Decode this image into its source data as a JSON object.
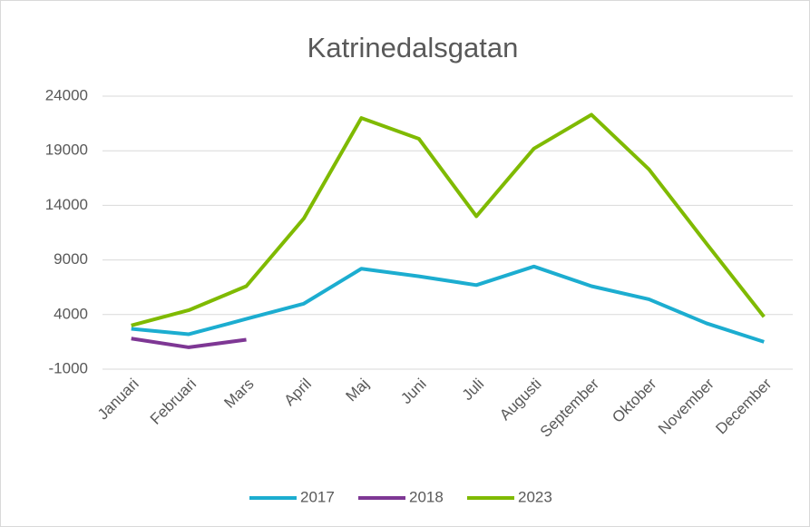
{
  "chart_data": {
    "type": "line",
    "title": "Katrinedalsgatan",
    "categories": [
      "Januari",
      "Februari",
      "Mars",
      "April",
      "Maj",
      "Juni",
      "Juli",
      "Augusti",
      "September",
      "Oktober",
      "November",
      "December"
    ],
    "series": [
      {
        "name": "2017",
        "color": "#1cadd0",
        "values": [
          2700,
          2200,
          3600,
          5000,
          8200,
          7500,
          6700,
          8400,
          6600,
          5400,
          3200,
          1500
        ]
      },
      {
        "name": "2018",
        "color": "#7e3794",
        "values": [
          1800,
          1000,
          1700,
          null,
          null,
          null,
          null,
          null,
          null,
          null,
          null,
          null
        ]
      },
      {
        "name": "2023",
        "color": "#7fba00",
        "values": [
          3000,
          4400,
          6600,
          12800,
          22000,
          20100,
          13000,
          19200,
          22300,
          17300,
          10500,
          3800
        ]
      }
    ],
    "ylim": [
      -1000,
      24000
    ],
    "yticks": [
      -1000,
      4000,
      9000,
      14000,
      19000,
      24000
    ],
    "grid": true,
    "legend": "bottom"
  }
}
